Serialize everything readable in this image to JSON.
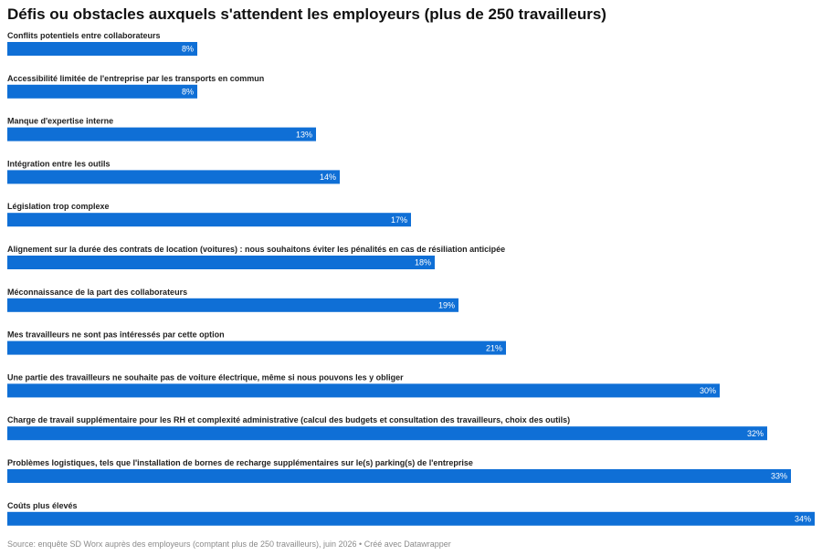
{
  "chart_data": {
    "type": "bar",
    "orientation": "horizontal",
    "title": "Défis ou obstacles auxquels s'attendent les employeurs (plus de 250 travailleurs)",
    "categories": [
      "Conflits potentiels entre collaborateurs",
      "Accessibilité limitée de l'entreprise par les transports en commun",
      "Manque d'expertise interne",
      "Intégration entre les outils",
      "Législation trop complexe",
      "Alignement sur la durée des contrats de location (voitures) : nous souhaitons éviter les pénalités en cas de résiliation anticipée",
      "Méconnaissance de la part des collaborateurs",
      "Mes travailleurs ne sont pas intéressés par cette option",
      "Une partie des travailleurs ne souhaite pas de voiture électrique, même si nous pouvons les y obliger",
      "Charge de travail supplémentaire pour les RH et complexité administrative (calcul des budgets et consultation des travailleurs, choix des outils)",
      "Problèmes logistiques, tels que l'installation de bornes de recharge supplémentaires sur le(s) parking(s) de l'entreprise",
      "Coûts plus élevés"
    ],
    "values": [
      8,
      8,
      13,
      14,
      17,
      18,
      19,
      21,
      30,
      32,
      33,
      34
    ],
    "value_labels": [
      "8%",
      "8%",
      "13%",
      "14%",
      "17%",
      "18%",
      "19%",
      "21%",
      "30%",
      "32%",
      "33%",
      "34%"
    ],
    "unit": "%",
    "xlim": [
      0,
      34
    ],
    "bar_color": "#0f6fd6",
    "grid": false,
    "legend": "none"
  },
  "footer": {
    "source": "Source: enquête SD Worx auprès des employeurs (comptant plus de 250 travailleurs), juin 2026 • Créé avec Datawrapper"
  }
}
